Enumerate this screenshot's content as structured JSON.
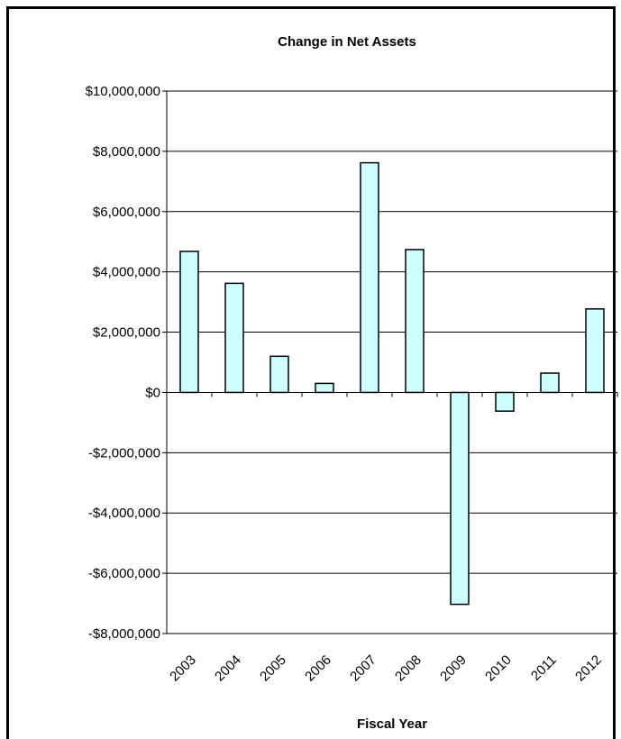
{
  "chart_data": {
    "type": "bar",
    "title": "Change in Net Assets",
    "xlabel": "Fiscal Year",
    "ylabel": "",
    "categories": [
      "2003",
      "2004",
      "2005",
      "2006",
      "2007",
      "2008",
      "2009",
      "2010",
      "2011",
      "2012"
    ],
    "values": [
      4680000,
      3620000,
      1200000,
      300000,
      7620000,
      4740000,
      -7030000,
      -620000,
      640000,
      2770000
    ],
    "ylim": [
      -8000000,
      10000000
    ],
    "yticks": [
      10000000,
      8000000,
      6000000,
      4000000,
      2000000,
      0,
      -2000000,
      -4000000,
      -6000000,
      -8000000
    ],
    "ytick_labels": [
      "$10,000,000",
      "$8,000,000",
      "$6,000,000",
      "$4,000,000",
      "$2,000,000",
      "$0",
      "-$2,000,000",
      "-$4,000,000",
      "-$6,000,000",
      "-$8,000,000"
    ],
    "grid": true,
    "legend": "none",
    "bar_color": "#ccffff",
    "bar_stroke": "#000000"
  }
}
